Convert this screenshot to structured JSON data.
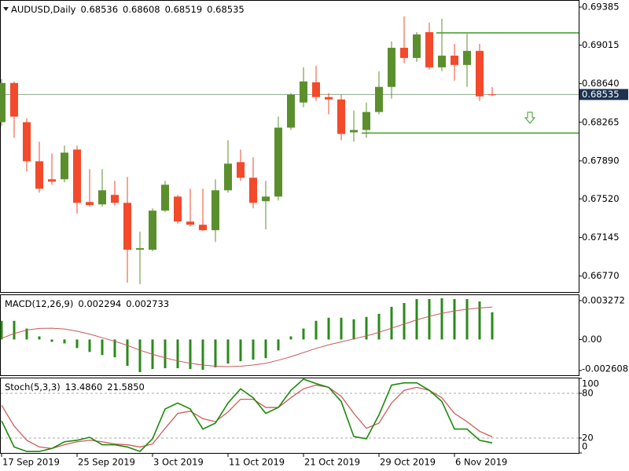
{
  "chart_data": [
    {
      "type": "candlestick",
      "title": "AUDUSD,Daily",
      "header_values": [
        0.68536,
        0.68608,
        0.68519,
        0.68535
      ],
      "categories": [
        "17 Sep 2019",
        null,
        null,
        null,
        null,
        null,
        "25 Sep 2019",
        null,
        null,
        null,
        null,
        null,
        "3 Oct 2019",
        null,
        null,
        null,
        null,
        null,
        "11 Oct 2019",
        null,
        null,
        null,
        null,
        null,
        "21 Oct 2019",
        null,
        null,
        null,
        null,
        null,
        "29 Oct 2019",
        null,
        null,
        null,
        null,
        null,
        "6 Nov 2019",
        null,
        null,
        null
      ],
      "open": [
        0.68266,
        0.68647,
        0.68266,
        0.67886,
        0.67711,
        0.67711,
        0.68,
        0.6749,
        0.67467,
        0.67559,
        0.67482,
        0.67026,
        0.67026,
        0.67406,
        0.67543,
        0.673,
        0.67269,
        0.67216,
        0.67604,
        0.67878,
        0.67726,
        0.67498,
        0.67543,
        0.68213,
        0.68457,
        0.68654,
        0.6851,
        0.68487,
        0.68167,
        0.6819,
        0.68365,
        0.68609,
        0.68989,
        0.6889,
        0.69141,
        0.68799,
        0.68913,
        0.68822,
        0.68959,
        0.68536
      ],
      "high": [
        0.68685,
        0.68662,
        0.68304,
        0.68076,
        0.67962,
        0.68038,
        0.68038,
        0.6781,
        0.6781,
        0.67696,
        0.67734,
        0.67201,
        0.67429,
        0.67696,
        0.67559,
        0.67619,
        0.67619,
        0.67711,
        0.68091,
        0.68,
        0.67924,
        0.67696,
        0.6832,
        0.68548,
        0.68799,
        0.68814,
        0.68548,
        0.68533,
        0.6838,
        0.68457,
        0.68761,
        0.6905,
        0.69294,
        0.69141,
        0.69233,
        0.69271,
        0.69027,
        0.69126,
        0.69027,
        0.68608
      ],
      "low": [
        0.68228,
        0.68114,
        0.67787,
        0.67581,
        0.67658,
        0.6768,
        0.67376,
        0.67444,
        0.67444,
        0.67452,
        0.66706,
        0.66691,
        0.67011,
        0.67391,
        0.67277,
        0.67254,
        0.67209,
        0.67102,
        0.67581,
        0.67696,
        0.67429,
        0.67224,
        0.67505,
        0.6819,
        0.68411,
        0.68472,
        0.68342,
        0.68091,
        0.68076,
        0.68114,
        0.68342,
        0.68495,
        0.68837,
        0.68852,
        0.68776,
        0.68761,
        0.6867,
        0.68609,
        0.68472,
        0.68519
      ],
      "close": [
        0.68647,
        0.6832,
        0.67886,
        0.67619,
        0.67688,
        0.6797,
        0.67482,
        0.6746,
        0.67604,
        0.67482,
        0.67026,
        0.67041,
        0.67406,
        0.67658,
        0.673,
        0.67269,
        0.67216,
        0.67604,
        0.67863,
        0.67726,
        0.67482,
        0.67543,
        0.68213,
        0.68533,
        0.68662,
        0.6851,
        0.68487,
        0.68152,
        0.6819,
        0.68365,
        0.68609,
        0.68989,
        0.6889,
        0.69119,
        0.68799,
        0.68913,
        0.68822,
        0.68959,
        0.68517,
        0.68535
      ],
      "up_color": "#5b8f2d",
      "down_color": "#f24a2b",
      "ylim": [
        0.66615,
        0.69446
      ],
      "yticks": [
        0.69385,
        0.69015,
        {
          "value": 0.6864,
          "label": "0.68640"
        },
        0.68265,
        {
          "value": 0.6789,
          "label": "0.67890"
        },
        {
          "value": 0.6752,
          "label": "0.67520"
        },
        0.67145,
        {
          "value": 0.6677,
          "label": "0.66770"
        }
      ],
      "levels": [
        0.69134,
        0.6816
      ],
      "level_color": "#3c9a2a",
      "last_price": 0.68535
    },
    {
      "type": "macd",
      "title": "MACD(12,26,9)",
      "header_values": [
        0.002294,
        0.002733
      ],
      "histogram": {
        "color": "#2a8a1a",
        "values": [
          0.00157,
          0.00157,
          0.00092,
          0.00026,
          -0.0002,
          -0.00033,
          -0.00072,
          -0.00105,
          -0.00131,
          -0.0015,
          -0.00222,
          -0.00275,
          -0.00249,
          -0.00242,
          -0.00242,
          -0.00249,
          -0.00255,
          -0.00235,
          -0.00203,
          -0.00183,
          -0.0017,
          -0.00157,
          -0.00092,
          0.00026,
          0.00092,
          0.00157,
          0.00183,
          0.00183,
          0.0017,
          0.0019,
          0.00216,
          0.00275,
          0.00307,
          0.0034,
          0.0034,
          0.00347,
          0.0034,
          0.0034,
          0.0032,
          0.002294
        ]
      },
      "signal": {
        "color": "#c85a5a",
        "values": [
          0.0001,
          0.0005,
          0.0008,
          0.00093,
          0.00095,
          0.00088,
          0.0007,
          0.00045,
          0.00015,
          -0.00015,
          -0.0005,
          -0.0009,
          -0.00125,
          -0.00155,
          -0.0018,
          -0.002,
          -0.00215,
          -0.00225,
          -0.00228,
          -0.00225,
          -0.00215,
          -0.002,
          -0.00175,
          -0.00145,
          -0.0011,
          -0.00075,
          -0.00045,
          -0.0002,
          5e-05,
          0.0003,
          0.0006,
          0.00095,
          0.0013,
          0.00165,
          0.00195,
          0.0022,
          0.0024,
          0.00255,
          0.00265,
          0.002733
        ]
      },
      "ylim": [
        -0.00301,
        0.00373
      ],
      "yticks": [
        0.003272,
        {
          "value": 0,
          "label": "0.00"
        },
        -0.002608
      ]
    },
    {
      "type": "stochastic",
      "title": "Stoch(5,3,3)",
      "header_values": [
        {
          "value": 13.486,
          "label": "13.4860"
        },
        {
          "value": 21.585,
          "label": "21.5850"
        }
      ],
      "main": {
        "color": "#1a8a0a",
        "values": [
          43,
          8,
          2,
          2,
          6,
          15,
          17,
          21,
          11,
          11,
          8,
          2,
          19,
          59,
          67,
          59,
          32,
          40,
          67,
          86,
          74,
          53,
          61,
          84,
          99,
          93,
          88,
          69,
          22,
          19,
          51,
          91,
          94,
          94,
          84,
          69,
          32,
          32,
          17,
          13.486
        ]
      },
      "signal": {
        "color": "#d05a5a",
        "values": [
          64,
          36,
          17,
          8,
          6,
          11,
          15,
          17,
          15,
          12,
          11,
          8,
          12,
          33,
          53,
          56,
          46,
          42,
          55,
          72,
          72,
          61,
          61,
          74,
          86,
          91,
          88,
          76,
          53,
          33,
          40,
          67,
          84,
          88,
          84,
          74,
          53,
          42,
          29,
          21.585
        ]
      },
      "ylim": [
        0,
        100
      ],
      "yticks": [
        100,
        80,
        20,
        0
      ],
      "levels": [
        20,
        80
      ]
    }
  ]
}
